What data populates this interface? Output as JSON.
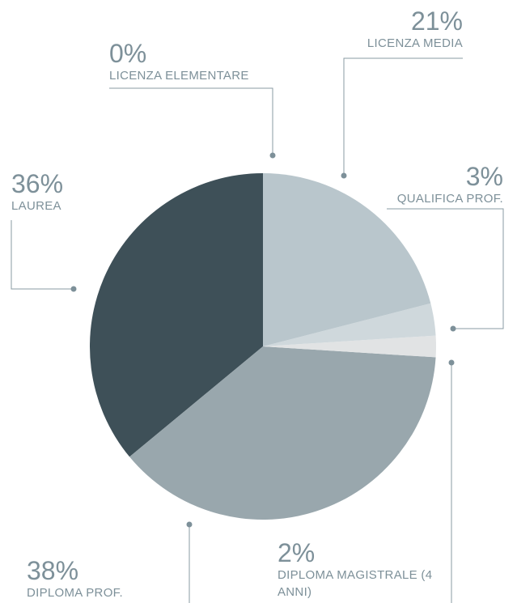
{
  "chart_data": {
    "type": "pie",
    "categories": [
      "LICENZA ELEMENTARE",
      "LICENZA MEDIA",
      "QUALIFICA PROF.",
      "DIPLOMA MAGISTRALE (4 ANNI)",
      "DIPLOMA PROF.",
      "LAUREA"
    ],
    "values": [
      0,
      21,
      3,
      2,
      38,
      36
    ],
    "value_labels": [
      "0%",
      "21%",
      "3%",
      "2%",
      "38%",
      "36%"
    ],
    "colors": [
      "#56707a",
      "#b9c6cc",
      "#cfd8dc",
      "#e1e3e4",
      "#99a7ad",
      "#3e5058"
    ]
  }
}
